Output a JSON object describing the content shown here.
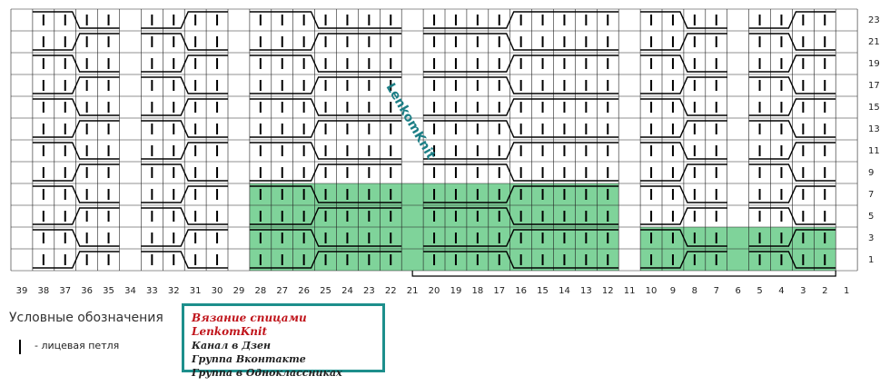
{
  "chart_title": null,
  "column_labels": [
    39,
    38,
    37,
    36,
    35,
    34,
    33,
    32,
    31,
    30,
    29,
    28,
    27,
    26,
    25,
    24,
    23,
    22,
    21,
    20,
    19,
    18,
    17,
    16,
    15,
    14,
    13,
    12,
    11,
    10,
    9,
    8,
    7,
    6,
    5,
    4,
    3,
    2,
    1
  ],
  "row_labels": [
    23,
    21,
    19,
    17,
    15,
    13,
    11,
    9,
    7,
    5,
    3,
    1
  ],
  "watermark": "LenkomKnit",
  "legend": {
    "title": "Условные обозначения",
    "symbol_label": "- лицевая петля"
  },
  "info_box": {
    "title": "Вязание спицами LenkomKnit",
    "lines": [
      "Канал в Дзен",
      "Группа Вконтакте",
      "Группа в Одноклассниках"
    ]
  }
}
